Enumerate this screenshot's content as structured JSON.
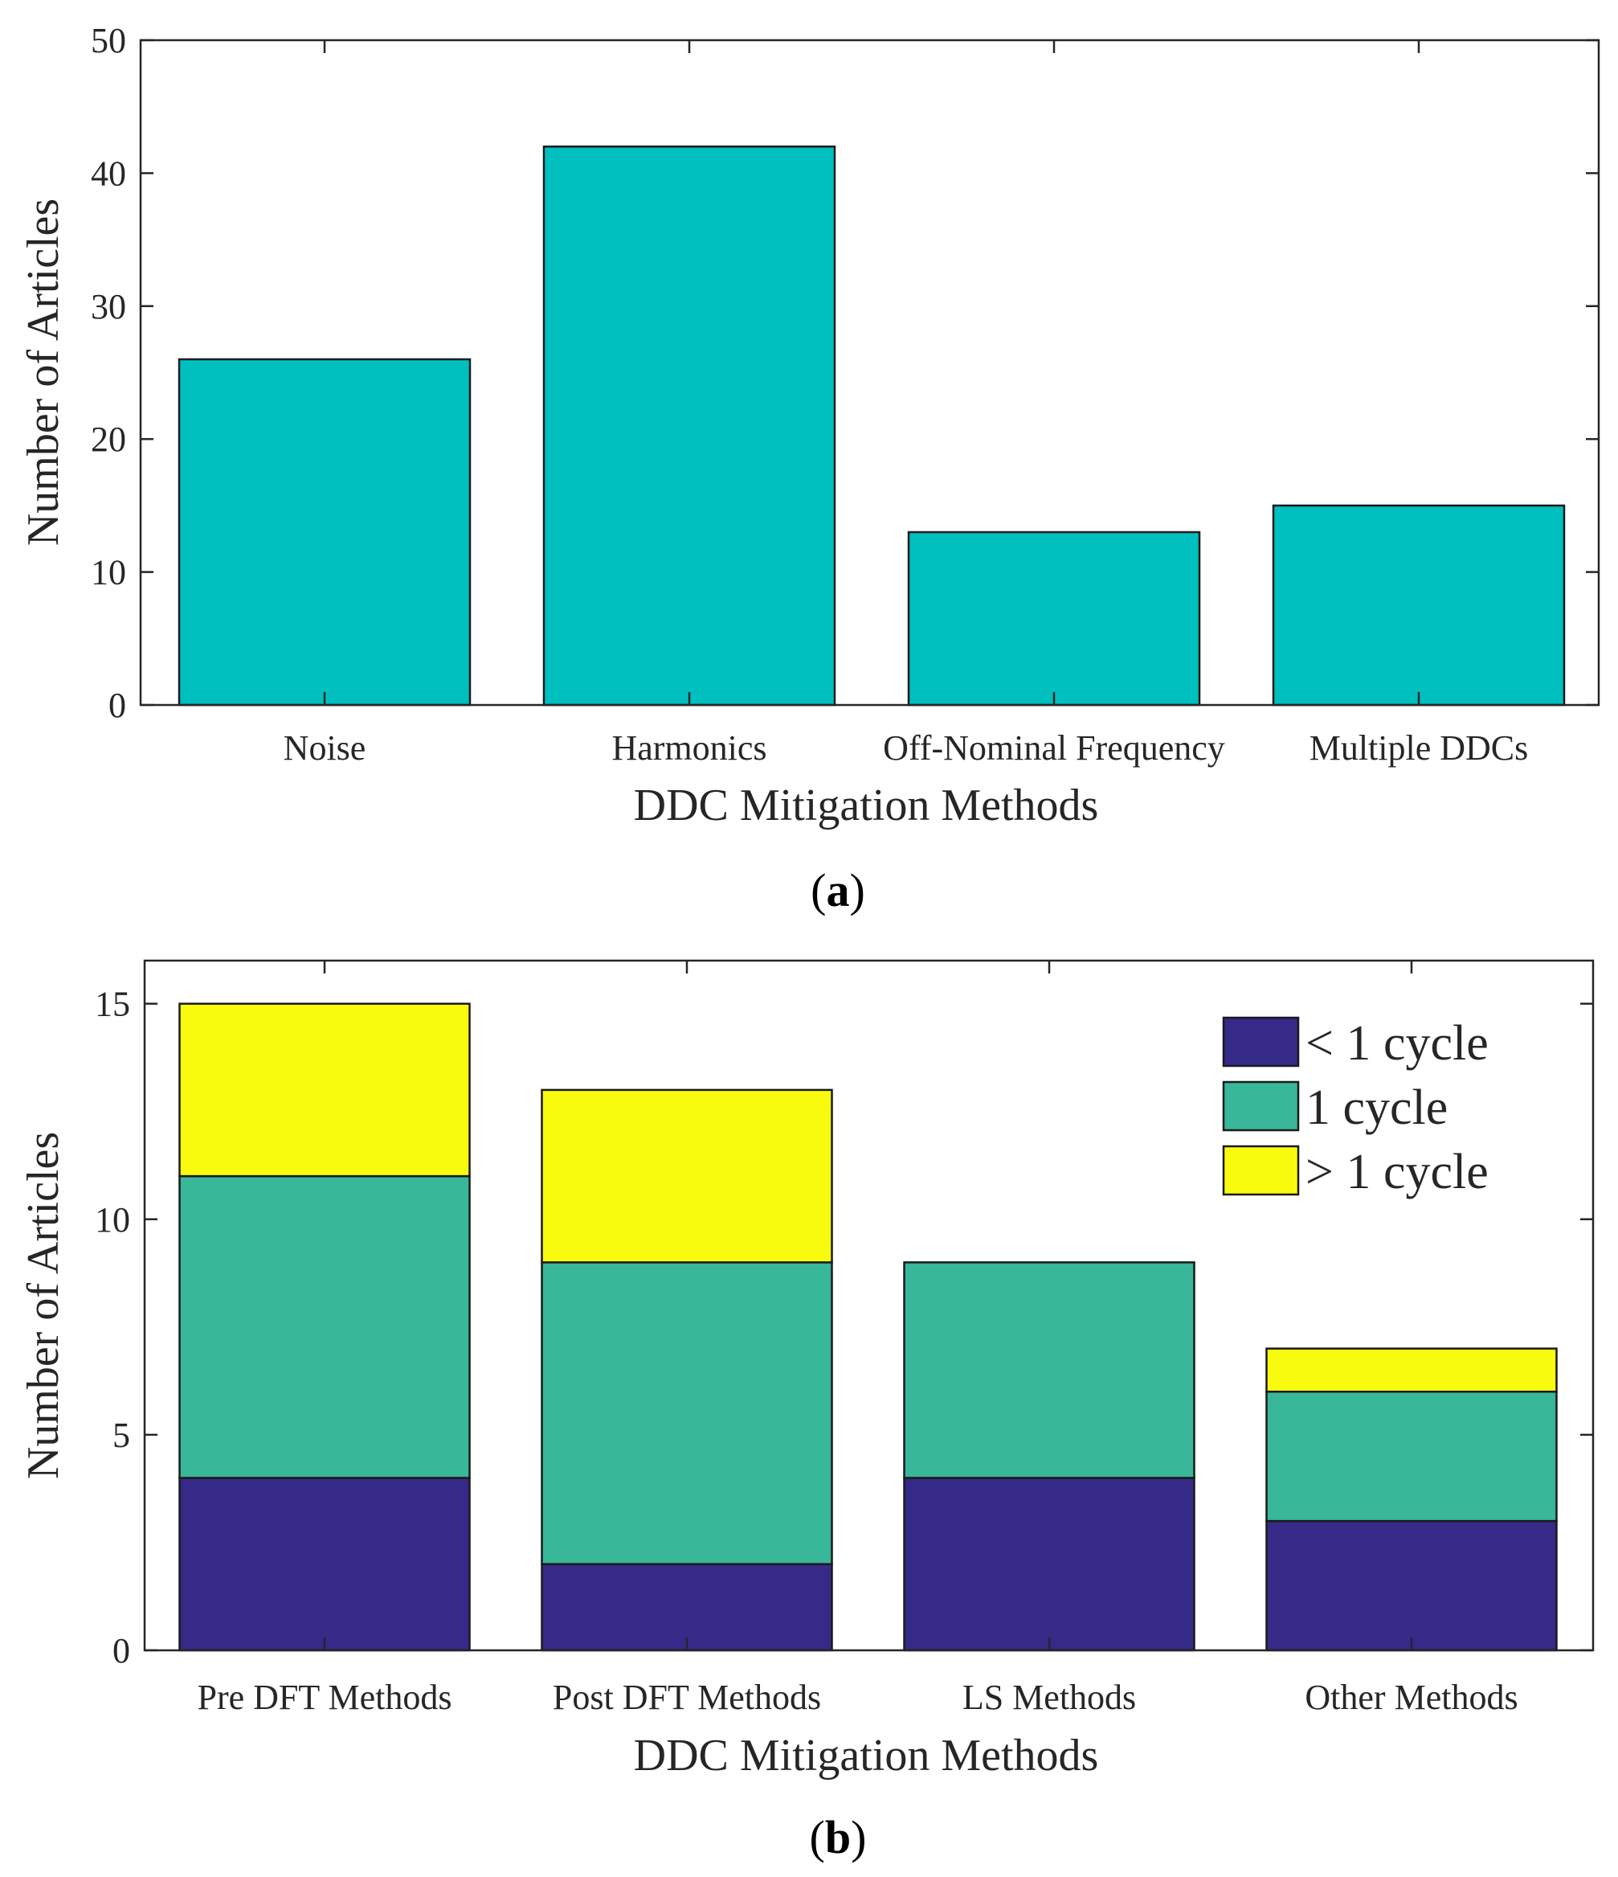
{
  "chart_data": [
    {
      "type": "bar",
      "panel_label": "a",
      "categories": [
        "Noise",
        "Harmonics",
        "Off-Nominal Frequency",
        "Multiple DDCs"
      ],
      "values": [
        26,
        42,
        13,
        15
      ],
      "title": "",
      "xlabel": "DDC Mitigation Methods",
      "ylabel": "Number of Articles",
      "ylim": [
        0,
        50
      ],
      "yticks": [
        0,
        10,
        20,
        30,
        40,
        50
      ],
      "color": "#00bfbf",
      "grid": false
    },
    {
      "type": "bar",
      "stacked": true,
      "panel_label": "b",
      "categories": [
        "Pre DFT Methods",
        "Post DFT Methods",
        "LS Methods",
        "Other Methods"
      ],
      "series": [
        {
          "name": "< 1 cycle",
          "values": [
            4,
            2,
            4,
            3
          ],
          "color": "#352a87"
        },
        {
          "name": "1 cycle",
          "values": [
            7,
            7,
            5,
            3
          ],
          "color": "#38b799"
        },
        {
          "name": "> 1 cycle",
          "values": [
            4,
            4,
            0,
            1
          ],
          "color": "#f9fb0e"
        }
      ],
      "title": "",
      "xlabel": "DDC Mitigation Methods",
      "ylabel": "Number of Articles",
      "ylim": [
        0,
        16
      ],
      "yticks": [
        0,
        5,
        10,
        15
      ],
      "legend_position": "top-right",
      "grid": false
    }
  ]
}
